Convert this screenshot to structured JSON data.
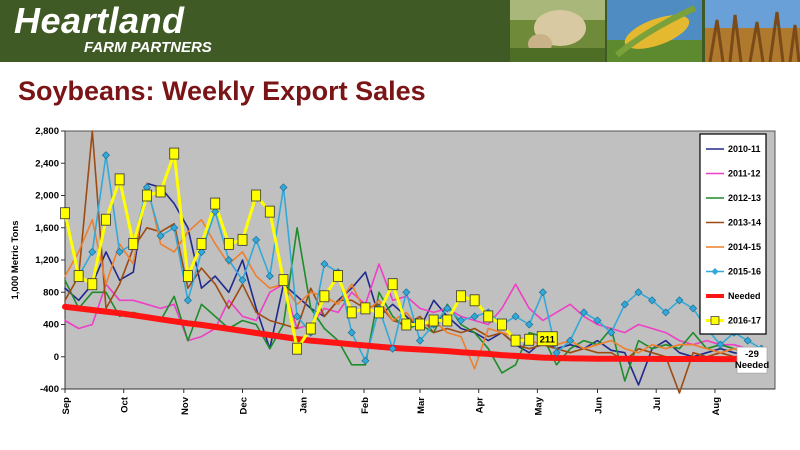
{
  "header": {
    "brand_main": "Heartland",
    "brand_sub": "FARM PARTNERS",
    "photos": [
      "cow-grazing-photo",
      "corn-ear-photo",
      "soybean-field-photo"
    ]
  },
  "title": "Soybeans:  Weekly Export Sales",
  "chart_data": {
    "type": "line",
    "ylabel": "1,000 Metric Tons",
    "ylim": [
      -400,
      2800
    ],
    "yticks": [
      -400,
      0,
      400,
      800,
      1200,
      1600,
      2000,
      2400,
      2800
    ],
    "ytick_labels": [
      "-400",
      "0",
      "400",
      "800",
      "1,200",
      "1,600",
      "2,000",
      "2,400",
      "2,800"
    ],
    "xlim": [
      0,
      52
    ],
    "months": [
      {
        "label": "Sep",
        "week": 0
      },
      {
        "label": "Oct",
        "week": 4.3
      },
      {
        "label": "Nov",
        "week": 8.7
      },
      {
        "label": "Dec",
        "week": 13
      },
      {
        "label": "Jan",
        "week": 17.4
      },
      {
        "label": "Feb",
        "week": 21.9
      },
      {
        "label": "Mar",
        "week": 26
      },
      {
        "label": "Apr",
        "week": 30.3
      },
      {
        "label": "May",
        "week": 34.6
      },
      {
        "label": "Jun",
        "week": 39
      },
      {
        "label": "Jul",
        "week": 43.3
      },
      {
        "label": "Aug",
        "week": 47.6
      }
    ],
    "grid": false,
    "legend_position": "right",
    "series": [
      {
        "name": "2010-11",
        "color": "#1f2a8c",
        "width": 1.6,
        "marker": "none",
        "values": [
          850,
          700,
          900,
          1300,
          950,
          1050,
          2150,
          2100,
          1900,
          1600,
          850,
          1000,
          800,
          1200,
          600,
          100,
          900,
          750,
          600,
          500,
          700,
          850,
          1050,
          500,
          650,
          500,
          350,
          700,
          500,
          350,
          300,
          200,
          300,
          150,
          50,
          200,
          100,
          150,
          100,
          200,
          80,
          50,
          -350,
          100,
          200,
          50,
          0,
          50,
          100,
          50,
          20,
          50
        ]
      },
      {
        "name": "2011-12",
        "color": "#ee3fc6",
        "width": 1.6,
        "marker": "none",
        "values": [
          450,
          350,
          400,
          900,
          700,
          700,
          650,
          600,
          650,
          200,
          250,
          350,
          700,
          500,
          450,
          800,
          900,
          350,
          400,
          600,
          550,
          800,
          650,
          1150,
          700,
          750,
          600,
          550,
          600,
          500,
          450,
          400,
          600,
          900,
          600,
          450,
          550,
          650,
          500,
          400,
          350,
          300,
          400,
          350,
          300,
          200,
          150,
          200,
          150,
          150,
          100,
          100
        ]
      },
      {
        "name": "2012-13",
        "color": "#1e8c2a",
        "width": 1.6,
        "marker": "none",
        "values": [
          950,
          600,
          800,
          800,
          500,
          550,
          500,
          450,
          750,
          200,
          650,
          500,
          350,
          450,
          400,
          100,
          400,
          1600,
          600,
          350,
          200,
          -100,
          -100,
          800,
          500,
          350,
          400,
          300,
          650,
          400,
          300,
          100,
          -200,
          -100,
          300,
          250,
          -100,
          100,
          200,
          150,
          350,
          -300,
          200,
          100,
          150,
          100,
          300,
          100,
          150,
          100,
          50,
          50
        ]
      },
      {
        "name": "2013-14",
        "color": "#9e4b12",
        "width": 1.6,
        "marker": "none",
        "values": [
          700,
          1000,
          2800,
          600,
          900,
          1350,
          1600,
          1550,
          1650,
          850,
          1100,
          900,
          600,
          900,
          550,
          450,
          400,
          350,
          850,
          500,
          700,
          700,
          600,
          650,
          450,
          400,
          500,
          300,
          350,
          300,
          350,
          250,
          300,
          150,
          100,
          150,
          100,
          50,
          100,
          50,
          50,
          -50,
          100,
          50,
          0,
          -450,
          50,
          0,
          50,
          0,
          20,
          0
        ]
      },
      {
        "name": "2014-15",
        "color": "#ee7f2d",
        "width": 1.6,
        "marker": "none",
        "values": [
          1000,
          1300,
          1700,
          900,
          1400,
          1150,
          2150,
          1400,
          1300,
          1550,
          1700,
          1400,
          1150,
          1300,
          1000,
          850,
          900,
          650,
          800,
          750,
          650,
          900,
          550,
          700,
          450,
          550,
          350,
          450,
          300,
          250,
          -150,
          350,
          300,
          250,
          200,
          150,
          150,
          200,
          100,
          150,
          200,
          100,
          50,
          150,
          100,
          150,
          150,
          100,
          50,
          100,
          50,
          50
        ]
      },
      {
        "name": "2015-16",
        "color": "#33a9d9",
        "width": 1.6,
        "marker": "diamond",
        "values": [
          1750,
          1000,
          1300,
          2500,
          1300,
          1400,
          2100,
          1500,
          1600,
          700,
          1300,
          1800,
          1200,
          950,
          1450,
          1000,
          2100,
          500,
          300,
          1150,
          1050,
          300,
          -50,
          600,
          100,
          800,
          200,
          400,
          600,
          450,
          500,
          550,
          400,
          500,
          400,
          800,
          50,
          200,
          550,
          450,
          300,
          650,
          800,
          700,
          550,
          700,
          600,
          350,
          150,
          300,
          200,
          100
        ]
      },
      {
        "name": "Needed",
        "color": "#ff1414",
        "width": 6,
        "marker": "none",
        "values": [
          620,
          600,
          580,
          560,
          540,
          515,
          490,
          465,
          440,
          415,
          395,
          370,
          345,
          320,
          295,
          270,
          245,
          220,
          200,
          185,
          170,
          155,
          140,
          125,
          110,
          100,
          90,
          80,
          70,
          55,
          45,
          35,
          20,
          10,
          0,
          -10,
          -15,
          -20,
          -22,
          -24,
          -25,
          -26,
          -27,
          -27,
          -28,
          -28,
          -28,
          -28,
          -29,
          -29,
          -29,
          -29
        ]
      },
      {
        "name": "2016-17",
        "color": "#ffff00",
        "width": 3,
        "marker": "square",
        "values": [
          1780,
          1000,
          900,
          1700,
          2200,
          1400,
          2000,
          2050,
          2520,
          1000,
          1400,
          1900,
          1400,
          1450,
          2000,
          1800,
          950,
          100,
          350,
          750,
          1000,
          550,
          600,
          550,
          900,
          400,
          400,
          450,
          450,
          750,
          700,
          500,
          400,
          200,
          211
        ]
      }
    ],
    "end_labels": [
      {
        "series": "2016-17",
        "text": "211"
      },
      {
        "series": "Needed",
        "text": "-29",
        "text2": "Needed"
      }
    ]
  }
}
